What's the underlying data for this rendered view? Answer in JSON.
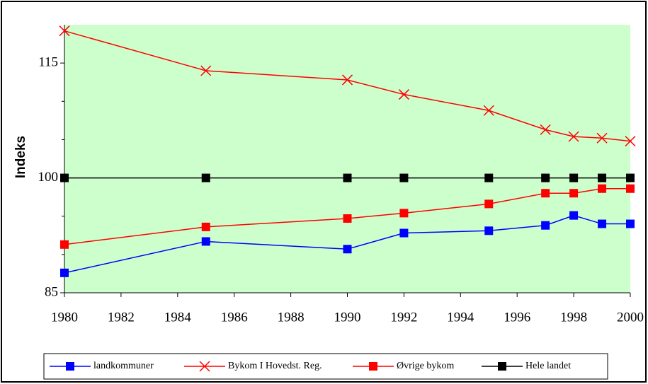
{
  "chart_data": {
    "type": "line",
    "y_label": "Indeks",
    "x": [
      1980,
      1985,
      1990,
      1992,
      1995,
      1997,
      1998,
      1999,
      2000
    ],
    "xlim": [
      1980,
      2000
    ],
    "xticks": [
      1980,
      1982,
      1984,
      1986,
      1988,
      1990,
      1992,
      1994,
      1996,
      1998,
      2000
    ],
    "ylim": [
      85,
      120
    ],
    "yticks": [
      85,
      100,
      115
    ],
    "yminor_ticks": [
      90,
      95,
      105,
      110
    ],
    "plot_background": "#ccffcc",
    "legend": "bottom",
    "series": [
      {
        "name": "landkommuner",
        "color": "#0000ff",
        "marker": "square",
        "values": [
          87.6,
          91.7,
          90.7,
          92.8,
          93.1,
          93.8,
          95.1,
          94.0,
          94.0
        ]
      },
      {
        "name": "Bykom I Hovedst. Reg.",
        "color": "#ff0000",
        "marker": "x",
        "values": [
          119.2,
          114.0,
          112.8,
          110.9,
          108.8,
          106.3,
          105.4,
          105.2,
          104.8
        ]
      },
      {
        "name": "Øvrige bykom",
        "color": "#ff0000",
        "marker": "square",
        "values": [
          91.3,
          93.6,
          94.7,
          95.4,
          96.6,
          98.0,
          98.0,
          98.6,
          98.6
        ]
      },
      {
        "name": "Hele landet",
        "color": "#000000",
        "marker": "square",
        "values": [
          100,
          100,
          100,
          100,
          100,
          100,
          100,
          100,
          100
        ]
      }
    ]
  }
}
